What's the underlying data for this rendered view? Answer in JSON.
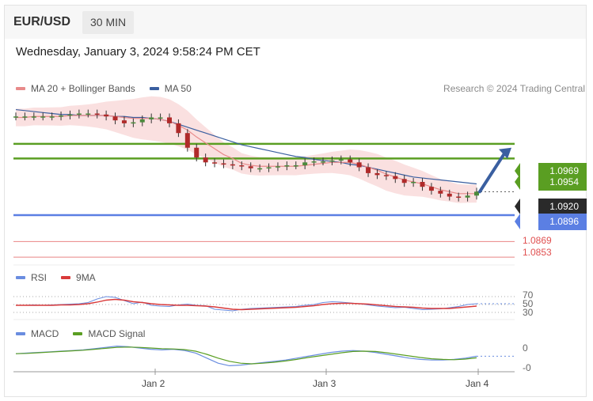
{
  "header": {
    "pair": "EUR/USD",
    "timeframe": "30 MIN"
  },
  "datetime": "Wednesday, January 3, 2024 9:58:24 PM CET",
  "legend": {
    "ma20": "MA 20 + Bollinger Bands",
    "ma50": "MA 50",
    "rsi": "RSI",
    "rsi_ma": "9MA",
    "macd": "MACD",
    "macd_signal": "MACD Signal"
  },
  "credit": "Research © 2024 Trading Central",
  "colors": {
    "ma20": "#e88a8a",
    "ma50": "#3a5fa0",
    "band_fill": "#f8d6d6",
    "resistance": "#5a9e22",
    "pivot": "#5b7fe3",
    "support": "#e05050",
    "price_tag": "#2a2a2a",
    "candle_up": "#4c8a3c",
    "candle_down": "#b02a2a",
    "arrow": "#3a5fa0",
    "rsi": "#6a8de0",
    "rsi_ma": "#d93a3a",
    "macd": "#6a8de0",
    "macd_signal": "#5a9e22"
  },
  "levels": {
    "resistance": [
      "1.0969",
      "1.0954"
    ],
    "current": "1.0920",
    "pivot": "1.0896",
    "support": [
      "1.0869",
      "1.0853"
    ]
  },
  "rsi_ticks": [
    "70",
    "50",
    "30"
  ],
  "macd_ticks": [
    "0",
    "-0"
  ],
  "x_labels": [
    "Jan 2",
    "Jan 3",
    "Jan 4"
  ],
  "chart_data": {
    "type": "line",
    "symbol": "EUR/USD",
    "interval": "30 MIN",
    "price_ylim": [
      1.0845,
      1.1015
    ],
    "x_ticks": [
      "Jan 2",
      "Jan 3",
      "Jan 4"
    ],
    "price_series": [
      {
        "name": "Price",
        "values": [
          1.0997,
          1.0997,
          1.0997,
          1.0997,
          1.0997,
          1.0998,
          1.0999,
          1.1,
          1.1,
          1.0999,
          1.0997,
          1.0993,
          1.099,
          1.0991,
          1.0994,
          1.0996,
          1.0996,
          1.099,
          1.098,
          1.0965,
          1.0955,
          1.095,
          1.0949,
          1.0948,
          1.0947,
          1.0946,
          1.0944,
          1.0944,
          1.0945,
          1.0946,
          1.0947,
          1.0947,
          1.095,
          1.0951,
          1.0951,
          1.0952,
          1.0953,
          1.095,
          1.0945,
          1.0939,
          1.0937,
          1.0936,
          1.0933,
          1.0929,
          1.093,
          1.0925,
          1.0921,
          1.0918,
          1.0915,
          1.0914,
          1.0916,
          1.092
        ]
      },
      {
        "name": "MA 20 + Bollinger Bands",
        "values": [
          1.0996,
          1.0996,
          1.0997,
          1.0997,
          1.0997,
          1.0997,
          1.0998,
          1.0998,
          1.0998,
          1.0998,
          1.0998,
          1.0997,
          1.0996,
          1.0995,
          1.0995,
          1.0995,
          1.0994,
          1.0992,
          1.0988,
          1.0983,
          1.0976,
          1.097,
          1.0964,
          1.0958,
          1.0954,
          1.0949,
          1.0947,
          1.0946,
          1.0946,
          1.0946,
          1.0946,
          1.0946,
          1.0947,
          1.0948,
          1.0949,
          1.095,
          1.095,
          1.095,
          1.0948,
          1.0945,
          1.0942,
          1.0938,
          1.0935,
          1.0932,
          1.093,
          1.0928,
          1.0925,
          1.0922,
          1.092,
          1.0918,
          1.0918,
          1.0918
        ]
      },
      {
        "name": "MA 50",
        "values": [
          1.1004,
          1.1003,
          1.1002,
          1.1001,
          1.1,
          1.0999,
          1.0999,
          1.0998,
          1.0998,
          1.0998,
          1.0998,
          1.0997,
          1.0997,
          1.0996,
          1.0996,
          1.0995,
          1.0994,
          1.0992,
          1.0989,
          1.0986,
          1.0983,
          1.098,
          1.0977,
          1.0974,
          1.0971,
          1.0968,
          1.0966,
          1.0964,
          1.0962,
          1.096,
          1.0958,
          1.0956,
          1.0955,
          1.0953,
          1.0952,
          1.0951,
          1.095,
          1.0948,
          1.0947,
          1.0945,
          1.0943,
          1.0941,
          1.0939,
          1.0937,
          1.0935,
          1.0934,
          1.0933,
          1.0932,
          1.0931,
          1.093,
          1.0929,
          1.0928
        ]
      }
    ],
    "levels": [
      {
        "label": "1.0969",
        "value": 1.0969,
        "type": "resistance"
      },
      {
        "label": "1.0954",
        "value": 1.0954,
        "type": "resistance"
      },
      {
        "label": "1.0920",
        "value": 1.092,
        "type": "current"
      },
      {
        "label": "1.0896",
        "value": 1.0896,
        "type": "pivot"
      },
      {
        "label": "1.0869",
        "value": 1.0869,
        "type": "support"
      },
      {
        "label": "1.0853",
        "value": 1.0853,
        "type": "support"
      }
    ],
    "rsi": {
      "ylim": [
        20,
        90
      ],
      "guides": [
        70,
        50,
        30
      ],
      "series": [
        {
          "name": "RSI",
          "values": [
            48,
            48,
            49,
            48,
            49,
            50,
            51,
            52,
            55,
            64,
            70,
            68,
            60,
            52,
            56,
            48,
            46,
            45,
            49,
            51,
            48,
            47,
            38,
            36,
            34,
            38,
            40,
            41,
            42,
            43,
            44,
            45,
            48,
            50,
            55,
            57,
            56,
            54,
            52,
            49,
            46,
            44,
            42,
            43,
            40,
            37,
            38,
            39,
            42,
            45,
            50,
            52
          ]
        },
        {
          "name": "9MA",
          "values": [
            48,
            48,
            48,
            48,
            48,
            49,
            49,
            50,
            52,
            56,
            61,
            63,
            61,
            57,
            55,
            52,
            50,
            49,
            48,
            48,
            47,
            46,
            44,
            41,
            38,
            37,
            38,
            39,
            40,
            41,
            42,
            43,
            45,
            47,
            50,
            52,
            53,
            53,
            52,
            51,
            49,
            47,
            45,
            44,
            43,
            41,
            40,
            40,
            40,
            42,
            44,
            46
          ]
        }
      ]
    },
    "macd": {
      "series": [
        {
          "name": "MACD",
          "values": [
            0.1,
            0.2,
            0.3,
            0.4,
            0.5,
            0.6,
            0.7,
            0.9,
            1.1,
            1.3,
            1.2,
            1.0,
            0.8,
            0.7,
            0.8,
            0.6,
            0.2,
            -0.6,
            -1.4,
            -1.8,
            -1.7,
            -1.5,
            -1.3,
            -1.1,
            -0.9,
            -0.6,
            -0.3,
            0.0,
            0.3,
            0.5,
            0.6,
            0.5,
            0.3,
            0.0,
            -0.3,
            -0.6,
            -0.8,
            -0.9,
            -0.9,
            -0.8,
            -0.6,
            -0.3
          ]
        },
        {
          "name": "MACD Signal",
          "values": [
            0.1,
            0.15,
            0.25,
            0.35,
            0.45,
            0.55,
            0.65,
            0.8,
            0.95,
            1.1,
            1.15,
            1.1,
            1.0,
            0.9,
            0.85,
            0.75,
            0.5,
            0.0,
            -0.6,
            -1.1,
            -1.4,
            -1.5,
            -1.4,
            -1.25,
            -1.05,
            -0.8,
            -0.5,
            -0.25,
            0.0,
            0.25,
            0.45,
            0.5,
            0.45,
            0.25,
            0.0,
            -0.25,
            -0.5,
            -0.7,
            -0.8,
            -0.85,
            -0.75,
            -0.55
          ]
        }
      ]
    }
  }
}
